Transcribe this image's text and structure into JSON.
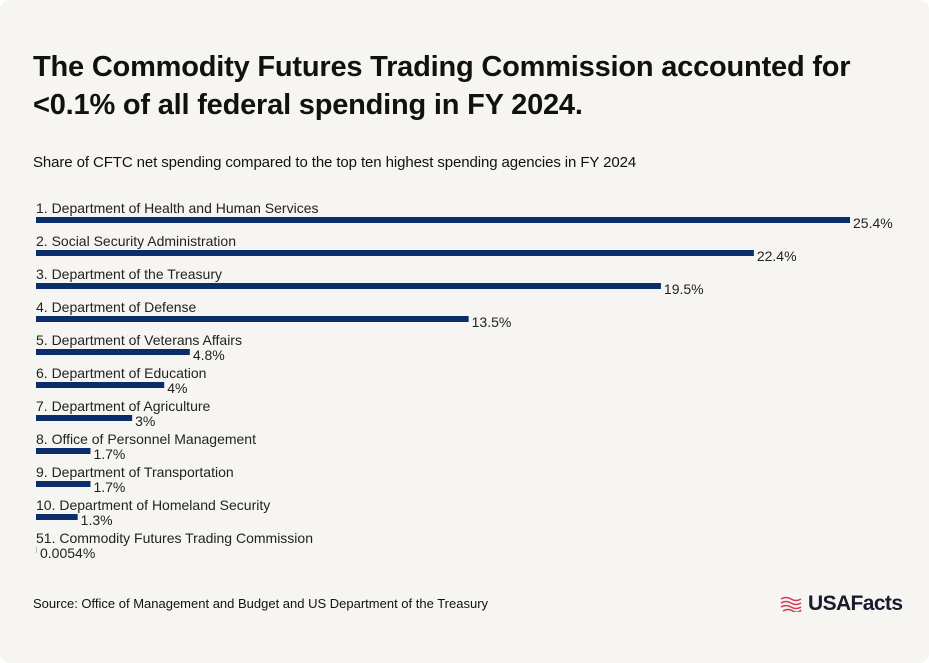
{
  "title": "The Commodity Futures Trading Commission accounted for <0.1% of all federal spending in FY 2024.",
  "subtitle": "Share of CFTC net spending compared to the top ten highest spending agencies in FY 2024",
  "source": "Source: Office of Management and Budget and US Department of the Treasury",
  "logo": {
    "text": "USAFacts",
    "icon": "flag-icon"
  },
  "colors": {
    "bar": "#0b2d6b",
    "background": "#f6f5f1",
    "logo_accent": "#d23c5a"
  },
  "chart_data": {
    "type": "bar",
    "orientation": "horizontal",
    "categories": [
      "1. Department of Health and Human Services",
      "2. Social Security Administration",
      "3. Department of the Treasury",
      "4. Department of Defense",
      "5. Department of Veterans Affairs",
      "6. Department of Education",
      "7. Department of Agriculture",
      "8. Office of Personnel Management",
      "9. Department of Transportation",
      "10. Department of Homeland Security",
      "51. Commodity Futures Trading Commission"
    ],
    "values": [
      25.4,
      22.4,
      19.5,
      13.5,
      4.8,
      4,
      3,
      1.7,
      1.7,
      1.3,
      0.0054
    ],
    "labels": [
      "25.4%",
      "22.4%",
      "19.5%",
      "13.5%",
      "4.8%",
      "4%",
      "3%",
      "1.7%",
      "1.7%",
      "1.3%",
      "0.0054%"
    ],
    "unit": "%",
    "xlim": [
      0,
      25.4
    ],
    "grid": false,
    "legend": "none"
  }
}
